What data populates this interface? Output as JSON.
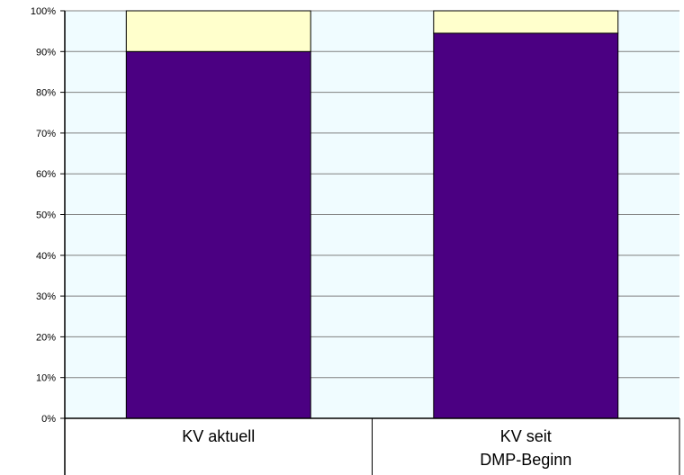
{
  "chart_data": {
    "type": "bar",
    "stacked": true,
    "normalized": true,
    "categories": [
      [
        "KV aktuell"
      ],
      [
        "KV seit",
        "DMP-Beginn"
      ]
    ],
    "series": [
      {
        "values": [
          90,
          94.5
        ],
        "color": "#4b0082"
      },
      {
        "values": [
          10,
          5.5
        ],
        "color": "#ffffcc"
      }
    ],
    "yticks": [
      "0%",
      "10%",
      "20%",
      "30%",
      "40%",
      "50%",
      "60%",
      "70%",
      "80%",
      "90%",
      "100%"
    ],
    "ylim": [
      0,
      100
    ],
    "grid": true,
    "legend": "none",
    "plot_background": "#f0fcff",
    "gridline_color": "#808080"
  }
}
